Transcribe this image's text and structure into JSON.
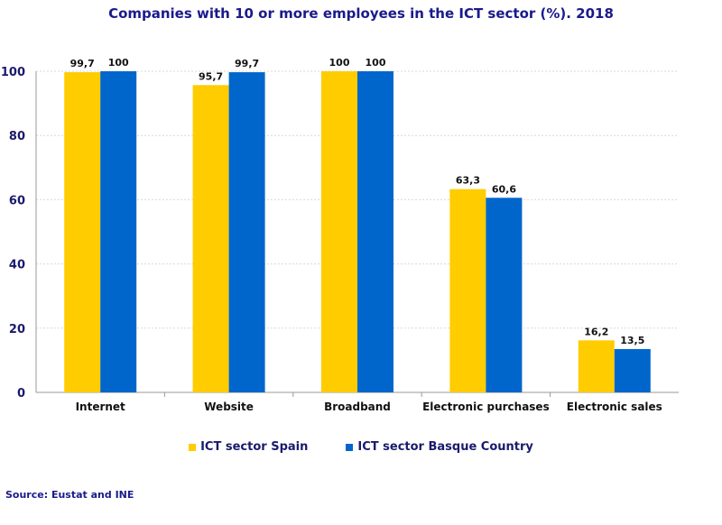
{
  "chart_data": {
    "type": "bar",
    "title": "Companies with 10 or more employees in the ICT sector (%). 2018",
    "categories": [
      "Internet",
      "Website",
      "Broadband",
      "Electronic purchases",
      "Electronic sales"
    ],
    "series": [
      {
        "name": "ICT sector Spain",
        "color": "#FFCC00",
        "values": [
          99.7,
          95.7,
          100,
          63.3,
          16.2
        ],
        "labels": [
          "99,7",
          "95,7",
          "100",
          "63,3",
          "16,2"
        ]
      },
      {
        "name": "ICT sector Basque Country",
        "color": "#0066CC",
        "values": [
          100,
          99.7,
          100,
          60.6,
          13.5
        ],
        "labels": [
          "100",
          "99,7",
          "100",
          "60,6",
          "13,5"
        ]
      }
    ],
    "yticks": [
      "0",
      "20",
      "40",
      "60",
      "80",
      "100"
    ],
    "ylim": [
      0,
      100
    ],
    "xlabel": "",
    "ylabel": "",
    "grid": true,
    "legend_position": "bottom"
  },
  "source": "Source: Eustat and INE"
}
